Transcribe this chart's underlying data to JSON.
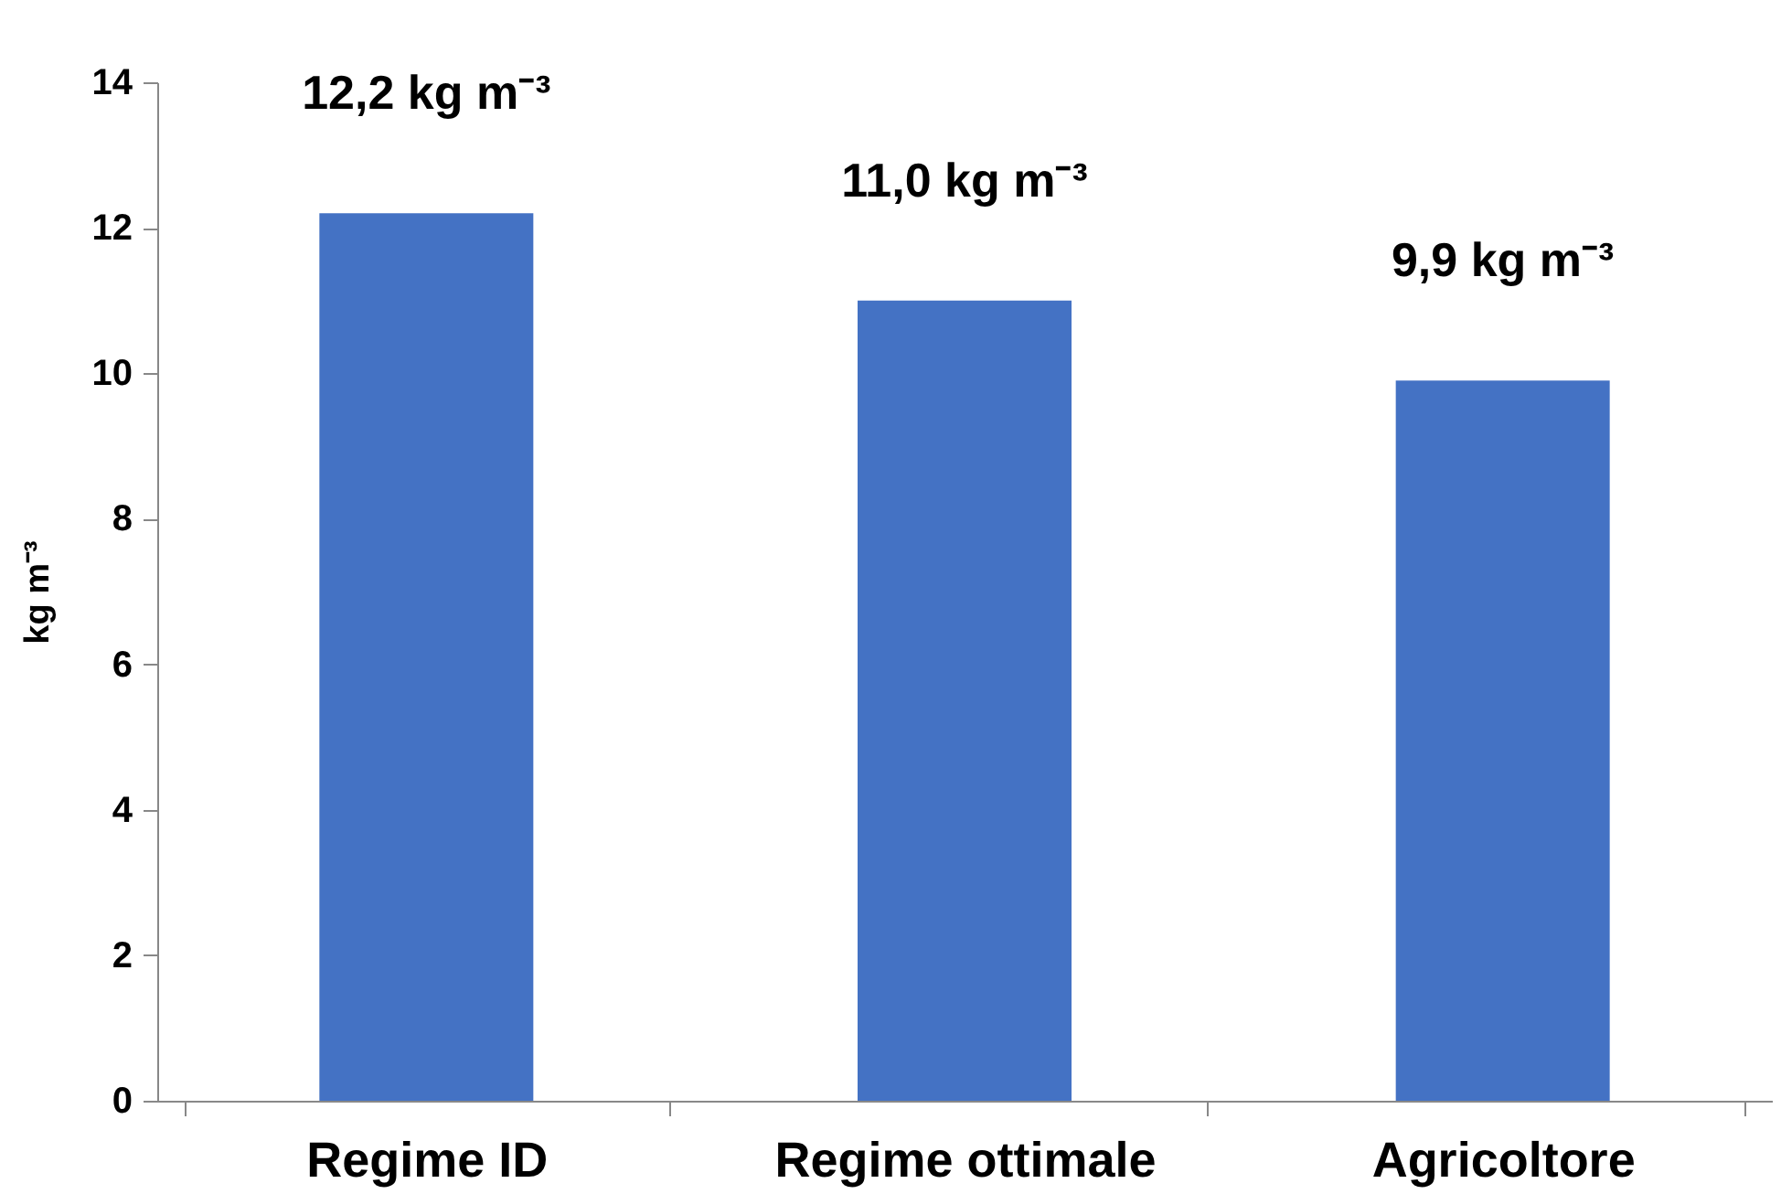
{
  "chart_data": {
    "type": "bar",
    "ylabel": "kg m⁻³",
    "categories": [
      "Regime ID",
      "Regime ottimale",
      "Agricoltore"
    ],
    "values": [
      12.2,
      11.0,
      9.9
    ],
    "value_labels": [
      "12,2 kg m⁻³",
      "11,0 kg m⁻³",
      "9,9 kg m⁻³"
    ],
    "color": "#4472c4",
    "ylim": [
      0,
      14
    ],
    "yticks": [
      0,
      2,
      4,
      6,
      8,
      10,
      12,
      14
    ],
    "grid": false
  }
}
